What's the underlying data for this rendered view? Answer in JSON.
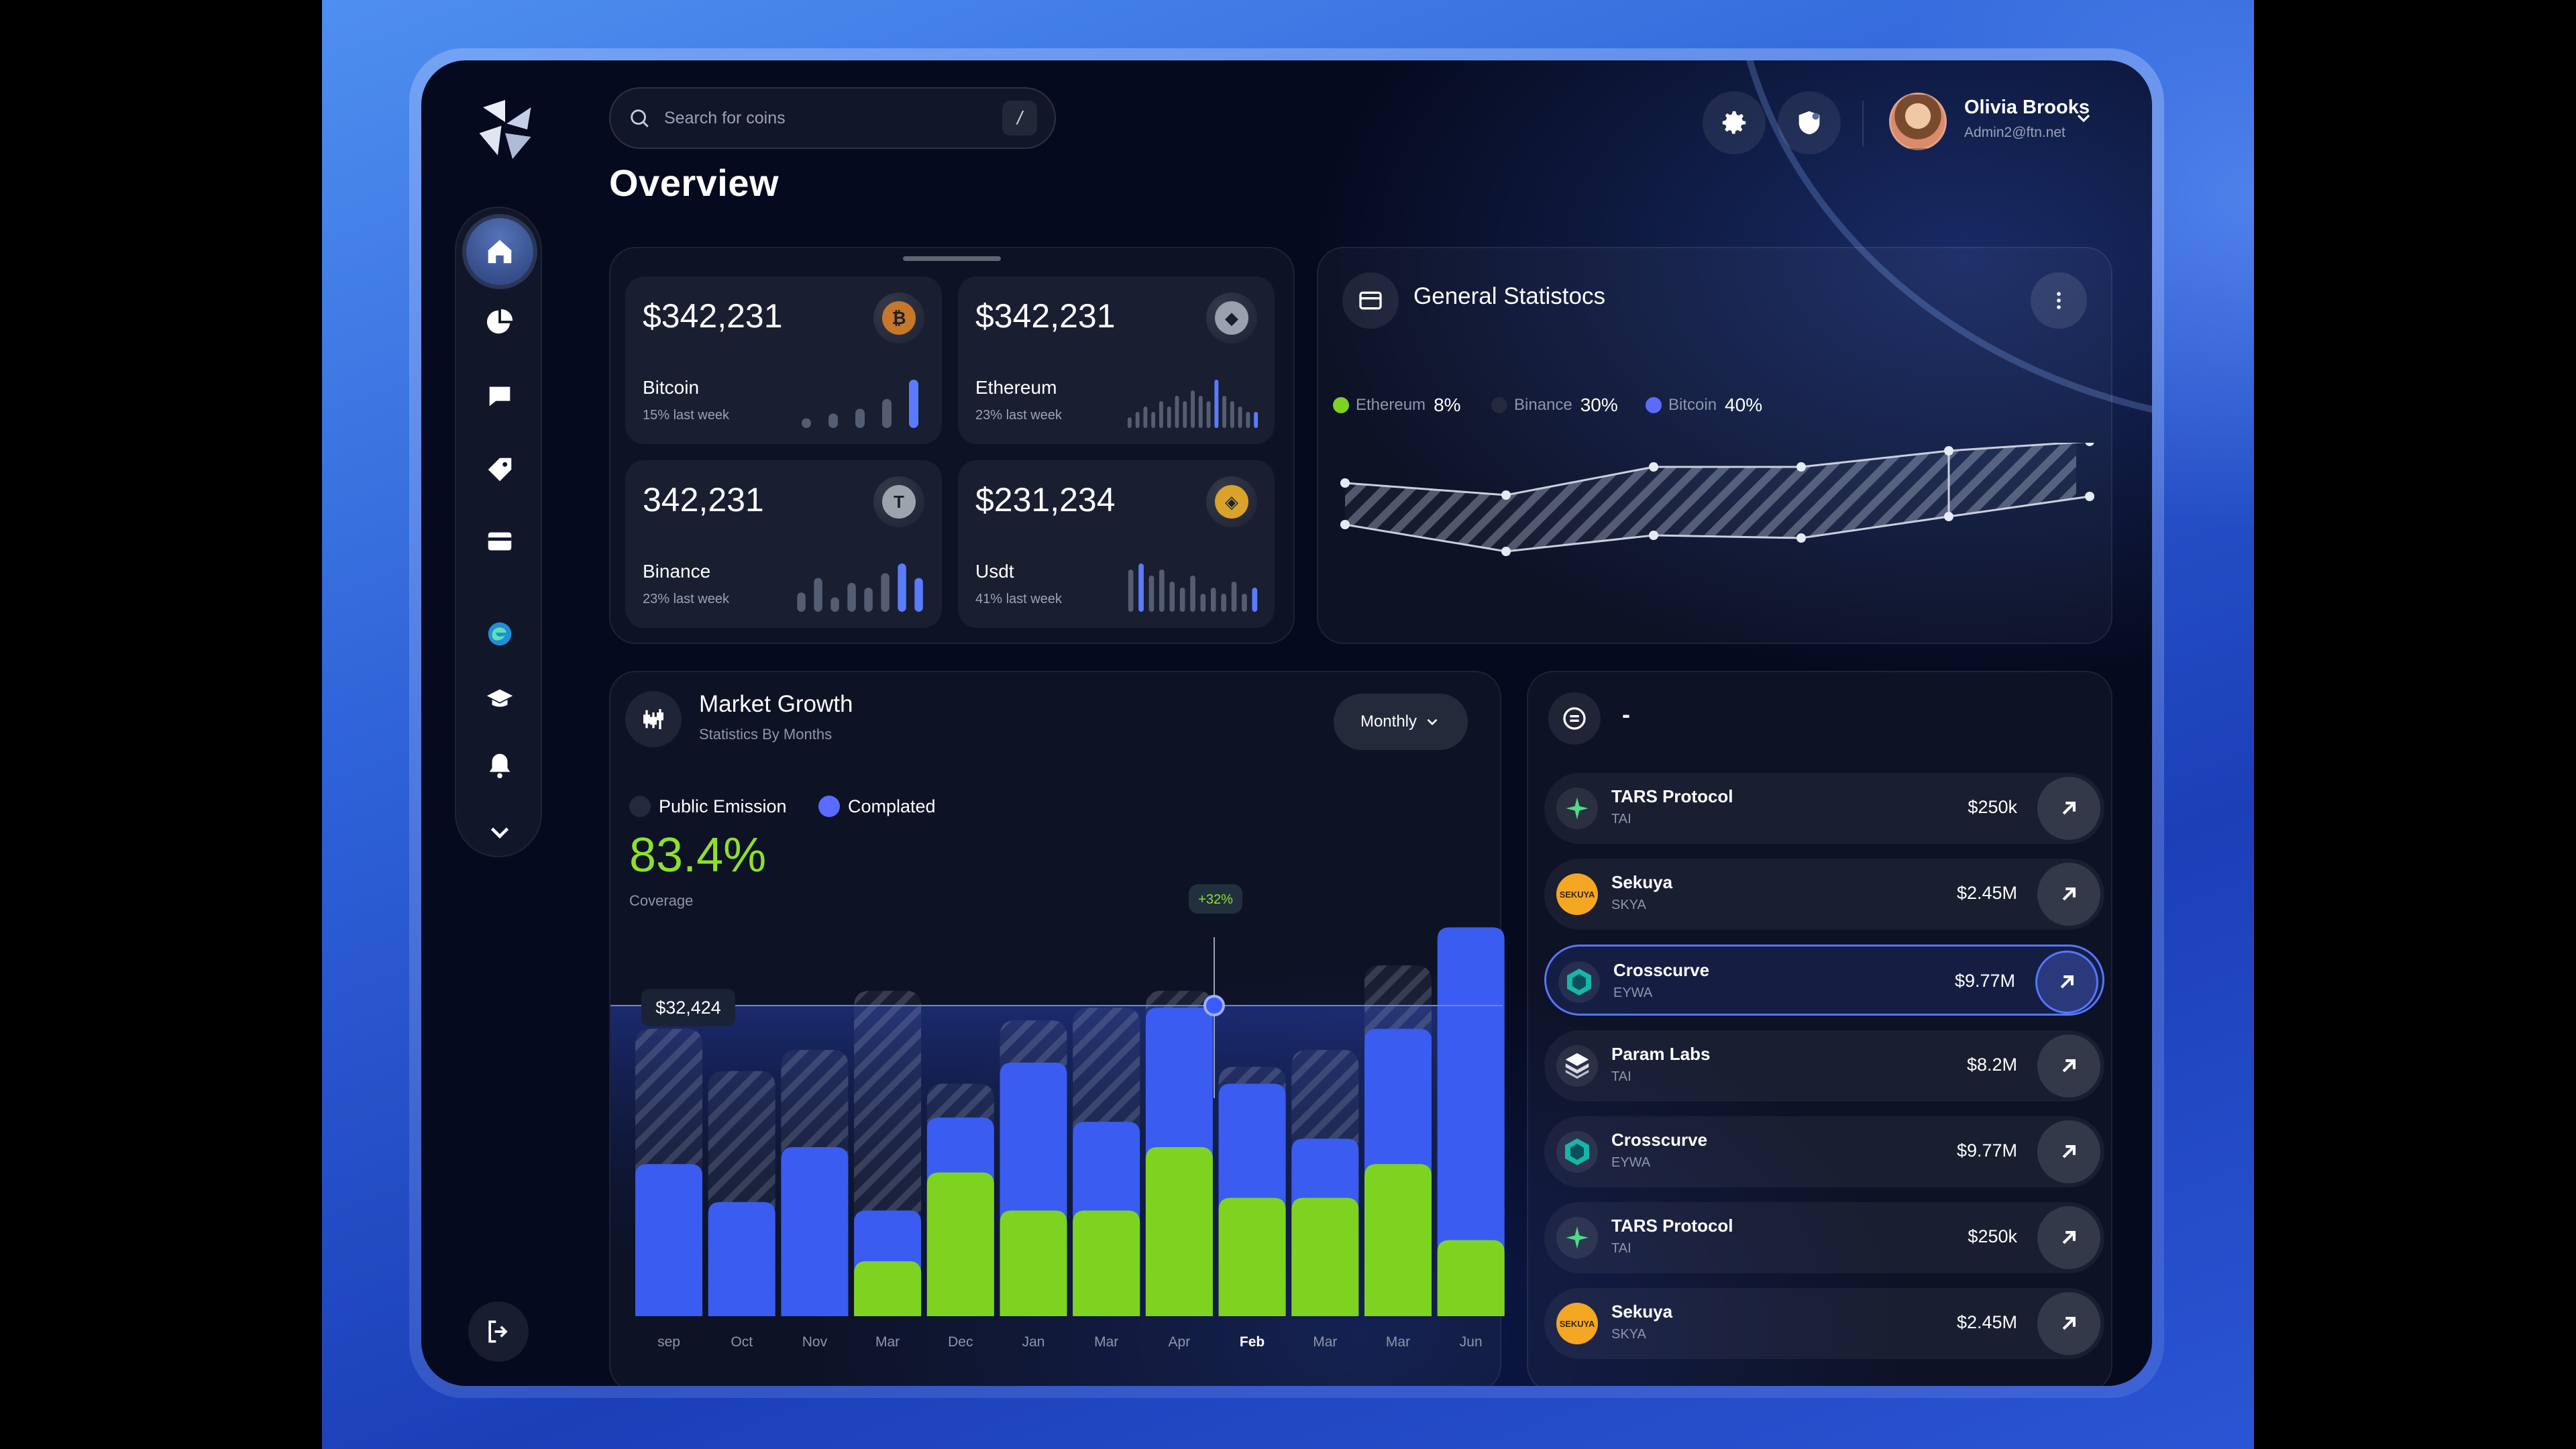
{
  "header": {
    "search_placeholder": "Search for coins",
    "search_shortcut": "/",
    "page_title": "Overview",
    "user": {
      "name": "Olivia Brooks",
      "email": "Admin2@ftn.net"
    }
  },
  "sidebar": {
    "items": [
      {
        "name": "home",
        "icon": "home-icon",
        "active": true
      },
      {
        "name": "analytics",
        "icon": "pie-chart-icon"
      },
      {
        "name": "messages",
        "icon": "chat-icon"
      },
      {
        "name": "tags",
        "icon": "tag-icon"
      },
      {
        "name": "cards",
        "icon": "card-icon"
      },
      {
        "name": "edge",
        "icon": "edge-logo-icon"
      },
      {
        "name": "learn",
        "icon": "graduation-cap-icon"
      },
      {
        "name": "notifications",
        "icon": "bell-icon"
      },
      {
        "name": "more",
        "icon": "chevron-down-icon"
      }
    ]
  },
  "coins": [
    {
      "value": "$342,231",
      "name": "Bitcoin",
      "sub": "15% last week",
      "icon": "bitcoin-icon",
      "glyph": "₿",
      "color": "#c7772a",
      "spark": [
        2,
        3,
        4,
        6,
        10
      ]
    },
    {
      "value": "$342,231",
      "name": "Ethereum",
      "sub": "23% last week",
      "icon": "ethereum-icon",
      "glyph": "◆",
      "color": "#9aa0ae",
      "spark": [
        2,
        3,
        4,
        3,
        5,
        4,
        6,
        5,
        7,
        6,
        5,
        9,
        6,
        5,
        4,
        3,
        3
      ]
    },
    {
      "value": "342,231",
      "name": "Binance",
      "sub": "23% last week",
      "icon": "binance-icon",
      "glyph": "T",
      "color": "#9ca3ad",
      "spark": [
        4,
        7,
        3,
        6,
        5,
        8,
        10,
        7
      ]
    },
    {
      "value": "$231,234",
      "name": "Usdt",
      "sub": "41% last week",
      "icon": "usdt-icon",
      "glyph": "◈",
      "color": "#d9a22a",
      "spark": [
        7,
        8,
        6,
        7,
        5,
        4,
        6,
        3,
        4,
        3,
        5,
        3,
        4
      ]
    }
  ],
  "general_stats": {
    "title": "General Statistocs",
    "legend": [
      {
        "name": "Ethereum",
        "pct": "8%",
        "color": "#7ed321"
      },
      {
        "name": "Binance",
        "pct": "30%",
        "color": "#232a3e"
      },
      {
        "name": "Bitcoin",
        "pct": "40%",
        "color": "#5b6bff"
      }
    ]
  },
  "market_growth": {
    "title": "Market Growth",
    "subtitle": "Statistics By Months",
    "period": "Monthly",
    "legend": [
      {
        "name": "Public Emission",
        "color": "#232a3e"
      },
      {
        "name": "Complated",
        "color": "#5b6bff"
      }
    ],
    "coverage_value": "83.4%",
    "coverage_label": "Coverage",
    "hover_value": "$32,424",
    "tooltip": "+32%",
    "highlight_month": "Feb"
  },
  "chart_data": {
    "type": "bar",
    "categories": [
      "sep",
      "Oct",
      "Nov",
      "Mar",
      "Dec",
      "Jan",
      "Mar",
      "Apr",
      "Feb",
      "Mar",
      "Mar",
      "Jun"
    ],
    "series": [
      {
        "name": "Public Emission",
        "values": [
          68,
          58,
          63,
          77,
          55,
          70,
          73,
          77,
          59,
          63,
          83,
          88
        ]
      },
      {
        "name": "Complated",
        "values": [
          36,
          27,
          40,
          25,
          47,
          60,
          46,
          73,
          55,
          42,
          68,
          92
        ]
      },
      {
        "values": [
          0,
          0,
          0,
          13,
          34,
          25,
          25,
          40,
          28,
          28,
          36,
          18
        ]
      }
    ],
    "xlabel": "",
    "ylabel": ""
  },
  "tokens": {
    "title": "-",
    "items": [
      {
        "name": "TARS Protocol",
        "symbol": "TAI",
        "value": "$250k",
        "icon": "tars-icon",
        "kind": "tars"
      },
      {
        "name": "Sekuya",
        "symbol": "SKYA",
        "value": "$2.45M",
        "icon": "sekuya-icon",
        "kind": "sekuya"
      },
      {
        "name": "Crosscurve",
        "symbol": "EYWA",
        "value": "$9.77M",
        "icon": "crosscurve-icon",
        "kind": "cross",
        "selected": true
      },
      {
        "name": "Param Labs",
        "symbol": "TAI",
        "value": "$8.2M",
        "icon": "param-labs-icon",
        "kind": "param"
      },
      {
        "name": "Crosscurve",
        "symbol": "EYWA",
        "value": "$9.77M",
        "icon": "crosscurve-icon",
        "kind": "cross"
      },
      {
        "name": "TARS Protocol",
        "symbol": "TAI",
        "value": "$250k",
        "icon": "tars-icon",
        "kind": "tars"
      },
      {
        "name": "Sekuya",
        "symbol": "SKYA",
        "value": "$2.45M",
        "icon": "sekuya-icon",
        "kind": "sekuya"
      }
    ]
  }
}
